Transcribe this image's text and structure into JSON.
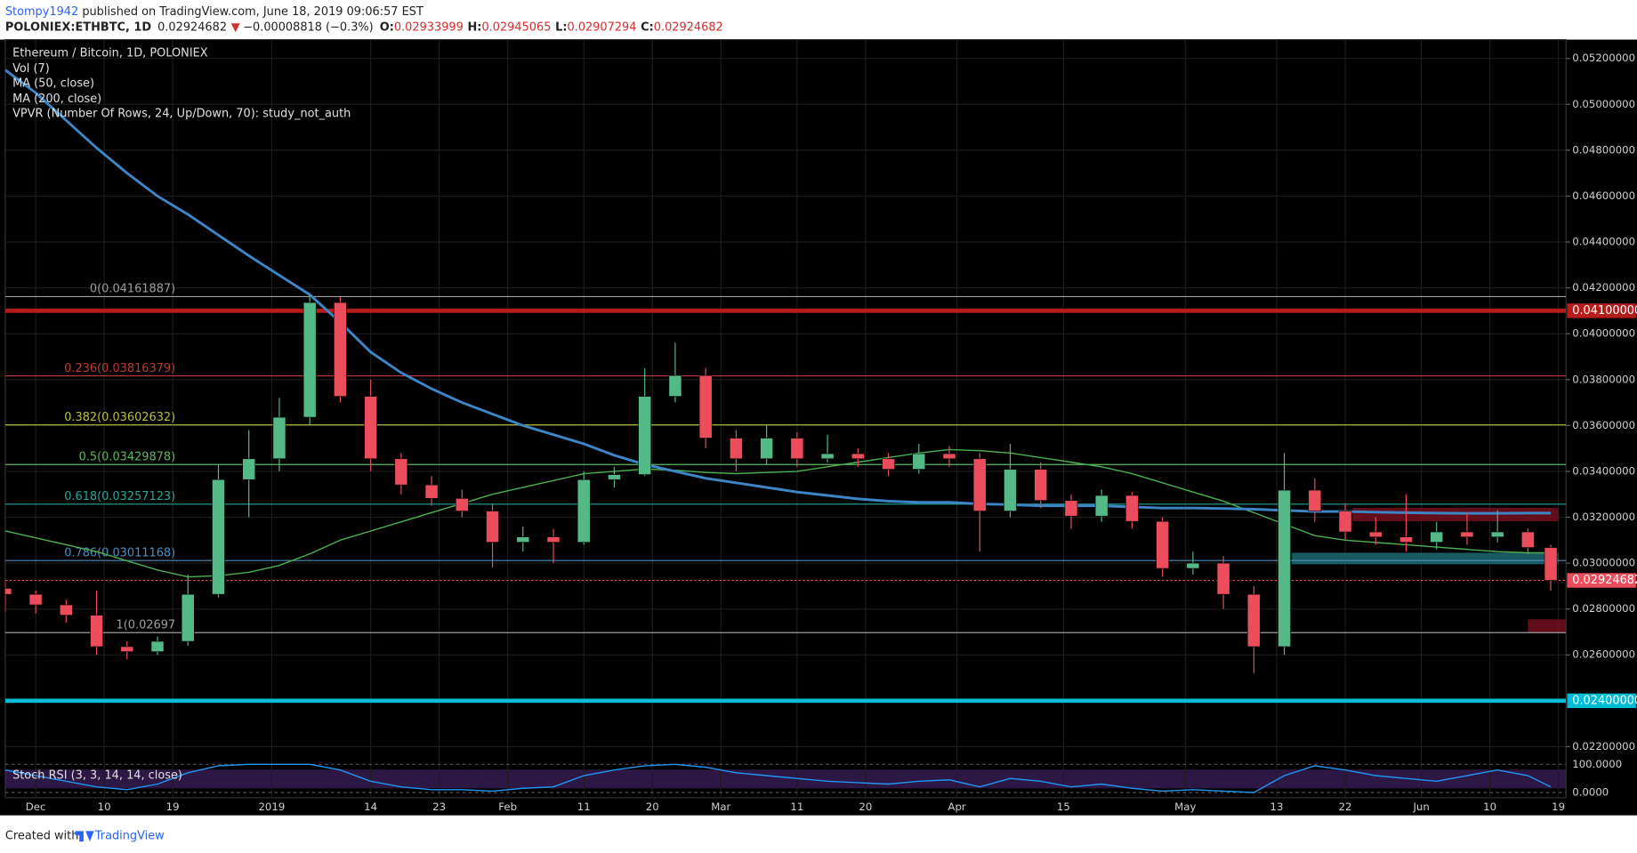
{
  "header": {
    "author": "Stompy1942",
    "published": " published on TradingView.com, June 18, 2019 09:06:57 EST",
    "symbol": "POLONIEX:ETHBTC, 1D",
    "last": "0.02924682",
    "arrow": "▼",
    "change": "−0.00008818 (−0.3%)",
    "o_label": "O:",
    "open": "0.02933999",
    "h_label": "H:",
    "high": "0.02945065",
    "l_label": "L:",
    "low": "0.02907294",
    "c_label": "C:",
    "close": "0.02924682"
  },
  "footer": {
    "created": "Created with",
    "brand": "TradingView"
  },
  "chart_data": {
    "type": "candlestick",
    "title": "Ethereum / Bitcoin, 1D, POLONIEX",
    "indicators": [
      "Vol (7)",
      "VPVR (Number Of Rows, 24, Up/Down, 70): study_not_auth"
    ],
    "x": [
      "2018-11-27",
      "2018-12-01",
      "2018-12-05",
      "2018-12-09",
      "2018-12-13",
      "2018-12-17",
      "2018-12-21",
      "2018-12-25",
      "2018-12-29",
      "2019-01-02",
      "2019-01-06",
      "2019-01-10",
      "2019-01-14",
      "2019-01-18",
      "2019-01-22",
      "2019-01-26",
      "2019-01-30",
      "2019-02-03",
      "2019-02-07",
      "2019-02-11",
      "2019-02-15",
      "2019-02-19",
      "2019-02-23",
      "2019-02-27",
      "2019-03-03",
      "2019-03-07",
      "2019-03-11",
      "2019-03-15",
      "2019-03-19",
      "2019-03-23",
      "2019-03-27",
      "2019-03-31",
      "2019-04-04",
      "2019-04-08",
      "2019-04-12",
      "2019-04-16",
      "2019-04-20",
      "2019-04-24",
      "2019-04-28",
      "2019-05-02",
      "2019-05-06",
      "2019-05-10",
      "2019-05-14",
      "2019-05-18",
      "2019-05-22",
      "2019-05-26",
      "2019-05-30",
      "2019-06-03",
      "2019-06-07",
      "2019-06-11",
      "2019-06-15",
      "2019-06-18"
    ],
    "open": [
      0.0289,
      0.02864,
      0.02818,
      0.02773,
      0.02636,
      0.02614,
      0.02659,
      0.02864,
      0.03364,
      0.03455,
      0.03636,
      0.04136,
      0.03727,
      0.03455,
      0.03341,
      0.03282,
      0.03227,
      0.03091,
      0.03114,
      0.03091,
      0.03364,
      0.03386,
      0.03727,
      0.03818,
      0.03545,
      0.03455,
      0.03545,
      0.03455,
      0.03477,
      0.03455,
      0.03409,
      0.03477,
      0.03455,
      0.03227,
      0.03409,
      0.03273,
      0.03205,
      0.03295,
      0.03182,
      0.02977,
      0.03,
      0.02864,
      0.02636,
      0.03318,
      0.03227,
      0.03136,
      0.03114,
      0.03091,
      0.03136,
      0.03114,
      0.03136,
      0.03068
    ],
    "high": [
      0.0292,
      0.0288,
      0.0284,
      0.0288,
      0.0266,
      0.0268,
      0.0295,
      0.0343,
      0.0358,
      0.0372,
      0.04168,
      0.0416,
      0.038,
      0.0348,
      0.0338,
      0.0332,
      0.0326,
      0.0316,
      0.0315,
      0.034,
      0.0342,
      0.0385,
      0.0396,
      0.0385,
      0.0358,
      0.036,
      0.0357,
      0.0356,
      0.035,
      0.0348,
      0.0352,
      0.0351,
      0.0348,
      0.0352,
      0.0344,
      0.033,
      0.0332,
      0.0331,
      0.032,
      0.0305,
      0.0303,
      0.029,
      0.0348,
      0.0337,
      0.0326,
      0.032,
      0.033,
      0.0318,
      0.0322,
      0.0323,
      0.0315,
      0.0308
    ],
    "low": [
      0.0279,
      0.0278,
      0.0274,
      0.026,
      0.0258,
      0.026,
      0.0264,
      0.0285,
      0.032,
      0.034,
      0.036,
      0.037,
      0.034,
      0.033,
      0.0325,
      0.032,
      0.0298,
      0.0305,
      0.03,
      0.0308,
      0.0333,
      0.0338,
      0.037,
      0.035,
      0.034,
      0.0343,
      0.0342,
      0.0344,
      0.0342,
      0.0338,
      0.0339,
      0.0342,
      0.0305,
      0.032,
      0.0324,
      0.0315,
      0.0318,
      0.0315,
      0.0294,
      0.0295,
      0.028,
      0.0252,
      0.026,
      0.0318,
      0.031,
      0.0308,
      0.0305,
      0.0306,
      0.0308,
      0.0309,
      0.0304,
      0.0288
    ],
    "close": [
      0.02864,
      0.02818,
      0.02773,
      0.02636,
      0.02614,
      0.02659,
      0.02864,
      0.03364,
      0.03455,
      0.03636,
      0.04136,
      0.03727,
      0.03455,
      0.03341,
      0.03282,
      0.03227,
      0.03091,
      0.03114,
      0.03091,
      0.03364,
      0.03386,
      0.03727,
      0.03818,
      0.03545,
      0.03455,
      0.03545,
      0.03455,
      0.03477,
      0.03455,
      0.03409,
      0.03477,
      0.03455,
      0.03227,
      0.03409,
      0.03273,
      0.03205,
      0.03295,
      0.03182,
      0.02977,
      0.03,
      0.02864,
      0.02636,
      0.03318,
      0.03227,
      0.03136,
      0.03114,
      0.03091,
      0.03136,
      0.03114,
      0.03136,
      0.03068,
      0.02925
    ],
    "colors": {
      "up": "#53b987",
      "down": "#eb4d5c"
    },
    "series": [
      {
        "name": "MA (50, close)",
        "color": "#4caf50",
        "values": [
          0.0314,
          0.0311,
          0.0308,
          0.0305,
          0.0301,
          0.0297,
          0.0294,
          0.02945,
          0.0296,
          0.0299,
          0.0304,
          0.031,
          0.0314,
          0.0318,
          0.0322,
          0.0326,
          0.033,
          0.0333,
          0.0336,
          0.0339,
          0.034,
          0.0341,
          0.03405,
          0.03395,
          0.0339,
          0.03395,
          0.034,
          0.0342,
          0.0344,
          0.0346,
          0.0348,
          0.03495,
          0.0349,
          0.0348,
          0.0346,
          0.0344,
          0.0342,
          0.0339,
          0.0335,
          0.0331,
          0.0327,
          0.0322,
          0.0317,
          0.0312,
          0.031,
          0.0309,
          0.0308,
          0.0307,
          0.0306,
          0.0305,
          0.03045,
          0.03045
        ]
      },
      {
        "name": "MA (200, close)",
        "color": "#3d85c6",
        "values": [
          0.0515,
          0.0505,
          0.0493,
          0.0481,
          0.047,
          0.046,
          0.0452,
          0.0443,
          0.0434,
          0.04255,
          0.0417,
          0.0405,
          0.0392,
          0.0383,
          0.0376,
          0.037,
          0.0365,
          0.036,
          0.0356,
          0.0352,
          0.0347,
          0.0343,
          0.034,
          0.0337,
          0.0335,
          0.0333,
          0.0331,
          0.03295,
          0.0328,
          0.0327,
          0.03265,
          0.03265,
          0.03258,
          0.03255,
          0.0325,
          0.0325,
          0.0325,
          0.03245,
          0.0324,
          0.0324,
          0.03238,
          0.03235,
          0.0323,
          0.03225,
          0.03225,
          0.03222,
          0.0322,
          0.03218,
          0.03217,
          0.03217,
          0.03218,
          0.03218
        ]
      }
    ],
    "xlim": [
      "2018-11-27",
      "2019-06-20"
    ],
    "xticks": [
      {
        "value": "2018-12-01",
        "label": "Dec"
      },
      {
        "value": "2018-12-10",
        "label": "10"
      },
      {
        "value": "2018-12-19",
        "label": "19"
      },
      {
        "value": "2019-01-01",
        "label": "2019"
      },
      {
        "value": "2019-01-14",
        "label": "14"
      },
      {
        "value": "2019-01-23",
        "label": "23"
      },
      {
        "value": "2019-02-01",
        "label": "Feb"
      },
      {
        "value": "2019-02-11",
        "label": "11"
      },
      {
        "value": "2019-02-20",
        "label": "20"
      },
      {
        "value": "2019-03-01",
        "label": "Mar"
      },
      {
        "value": "2019-03-11",
        "label": "11"
      },
      {
        "value": "2019-03-20",
        "label": "20"
      },
      {
        "value": "2019-04-01",
        "label": "Apr"
      },
      {
        "value": "2019-04-15",
        "label": "15"
      },
      {
        "value": "2019-05-01",
        "label": "May"
      },
      {
        "value": "2019-05-13",
        "label": "13"
      },
      {
        "value": "2019-05-22",
        "label": "22"
      },
      {
        "value": "2019-06-01",
        "label": "Jun"
      },
      {
        "value": "2019-06-10",
        "label": "10"
      },
      {
        "value": "2019-06-19",
        "label": "19"
      }
    ],
    "ylim": [
      0.019773,
      0.05282
    ],
    "yticks": [
      {
        "value": 0.022,
        "label": "0.02200000"
      },
      {
        "value": 0.026,
        "label": "0.02600000"
      },
      {
        "value": 0.028,
        "label": "0.02800000"
      },
      {
        "value": 0.03,
        "label": "0.03000000"
      },
      {
        "value": 0.032,
        "label": "0.03200000"
      },
      {
        "value": 0.034,
        "label": "0.03400000"
      },
      {
        "value": 0.036,
        "label": "0.03600000"
      },
      {
        "value": 0.038,
        "label": "0.03800000"
      },
      {
        "value": 0.04,
        "label": "0.04000000"
      },
      {
        "value": 0.042,
        "label": "0.04200000"
      },
      {
        "value": 0.044,
        "label": "0.04400000"
      },
      {
        "value": 0.046,
        "label": "0.04600000"
      },
      {
        "value": 0.048,
        "label": "0.04800000"
      },
      {
        "value": 0.05,
        "label": "0.05000000"
      },
      {
        "value": 0.052,
        "label": "0.05200000"
      }
    ],
    "grid": true,
    "fib_levels": [
      {
        "value": 0.04161887,
        "label": "0(0.04161887)",
        "color": "#9e9e9e"
      },
      {
        "value": 0.03816379,
        "label": "0.236(0.03816379)",
        "color": "#c0392b"
      },
      {
        "value": 0.03602632,
        "label": "0.382(0.03602632)",
        "color": "#b5c23a"
      },
      {
        "value": 0.03429878,
        "label": "0.5(0.03429878)",
        "color": "#5cb85c"
      },
      {
        "value": 0.03257123,
        "label": "0.618(0.03257123)",
        "color": "#26a69a"
      },
      {
        "value": 0.03011168,
        "label": "0.786(0.03011168)",
        "color": "#4a90c2"
      },
      {
        "value": 0.02697,
        "label": "1(0.02697",
        "color": "#9e9e9e"
      }
    ],
    "hlines": [
      {
        "value": 0.041,
        "label": "0.04100000",
        "color": "#b71c1c"
      },
      {
        "value": 0.024,
        "label": "0.02400000",
        "color": "#00bcd4"
      }
    ],
    "last_price": {
      "value": 0.02924682,
      "label": "0.02924682",
      "color": "#eb4d5c"
    },
    "zones": [
      {
        "x": [
          "2019-05-23",
          "2019-06-19"
        ],
        "range": [
          0.03182,
          0.03241
        ],
        "color": "#7a1020"
      },
      {
        "x": [
          "2019-05-15",
          "2019-06-19"
        ],
        "range": [
          0.02995,
          0.03045
        ],
        "color": "#1f6f7a"
      },
      {
        "x": [
          "2019-06-15",
          "2019-06-20"
        ],
        "range": [
          0.02695,
          0.02755
        ],
        "color": "#7a1020"
      }
    ],
    "stoch": {
      "name": "Stoch RSI (3, 3, 14, 14, close)",
      "color": "#2196f3",
      "ylim": [
        0,
        100
      ],
      "yticks": [
        {
          "value": 100,
          "label": "100.0000"
        },
        {
          "value": 0,
          "label": "0.0000"
        }
      ],
      "values": [
        80,
        60,
        40,
        20,
        10,
        30,
        70,
        95,
        100,
        100,
        100,
        80,
        40,
        20,
        10,
        10,
        5,
        15,
        20,
        60,
        80,
        95,
        100,
        90,
        70,
        60,
        50,
        40,
        35,
        30,
        40,
        45,
        20,
        50,
        40,
        20,
        30,
        15,
        5,
        10,
        5,
        0,
        60,
        95,
        80,
        60,
        50,
        40,
        60,
        80,
        60,
        20
      ]
    }
  }
}
